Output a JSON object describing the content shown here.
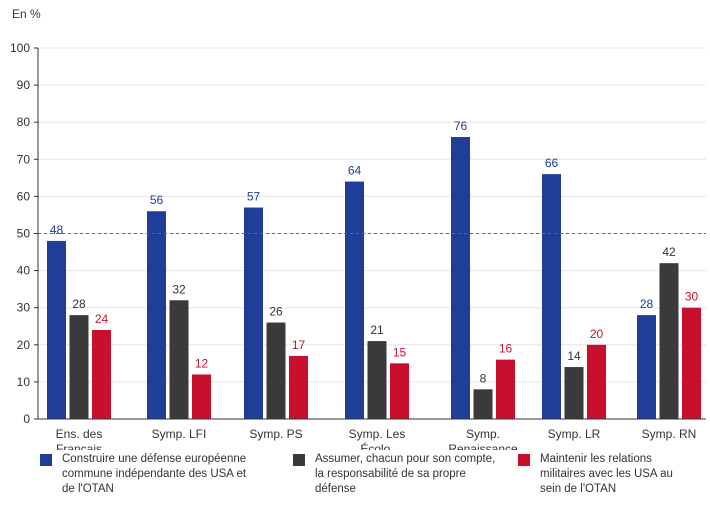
{
  "chart_data": {
    "type": "bar",
    "ylabel": "En %",
    "ylim": [
      0,
      100
    ],
    "yticks": [
      0,
      10,
      20,
      30,
      40,
      50,
      60,
      70,
      80,
      90,
      100
    ],
    "grid": true,
    "reference_line": 50,
    "categories": [
      [
        "Ens. des",
        "Français"
      ],
      [
        "Symp. LFI"
      ],
      [
        "Symp. PS"
      ],
      [
        "Symp. Les",
        "Écolo."
      ],
      [
        "Symp.",
        "Renaissance"
      ],
      [
        "Symp. LR"
      ],
      [
        "Symp. RN"
      ]
    ],
    "series": [
      {
        "name": "Construire une défense européenne\ncommune indépendante des USA et\nde l'OTAN",
        "color": "#1f3d99",
        "label_color": "#1f3d99",
        "values": [
          48,
          56,
          57,
          64,
          76,
          66,
          28
        ]
      },
      {
        "name": "Assumer, chacun pour son compte,\nla responsabilité de sa propre\ndéfense",
        "color": "#3a3a3a",
        "label_color": "#333333",
        "values": [
          28,
          32,
          26,
          21,
          8,
          14,
          42
        ]
      },
      {
        "name": "Maintenir les relations\nmilitaires avec les USA au\nsein de l'OTAN",
        "color": "#c8102e",
        "label_color": "#c8102e",
        "values": [
          24,
          12,
          17,
          15,
          16,
          20,
          30
        ]
      }
    ],
    "legend_position": "bottom"
  }
}
